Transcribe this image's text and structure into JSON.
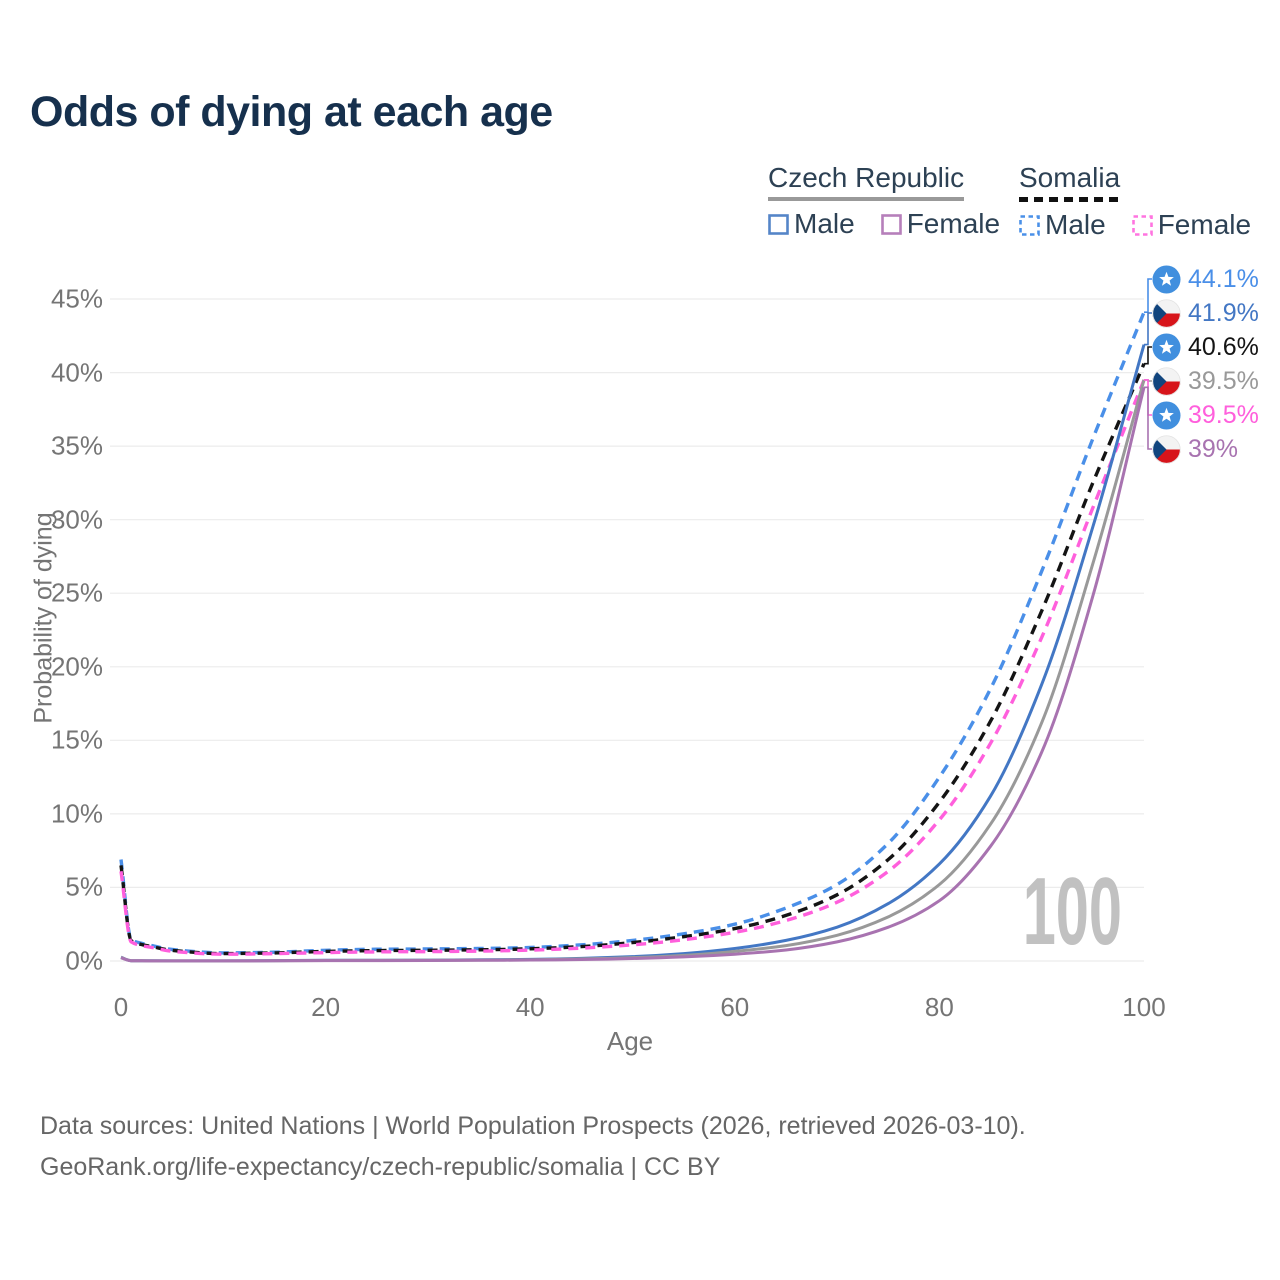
{
  "title": "Odds of dying at each age",
  "legend": {
    "groups": [
      {
        "name": "Czech Republic",
        "line_style": "solid",
        "underline_color": "#999999",
        "items": [
          {
            "label": "Male",
            "color": "#5585c8",
            "dash": "solid"
          },
          {
            "label": "Female",
            "color": "#b67fba",
            "dash": "solid"
          }
        ]
      },
      {
        "name": "Somalia",
        "line_style": "dashed",
        "underline_color": "#111111",
        "items": [
          {
            "label": "Male",
            "color": "#4a90e8",
            "dash": "dashed"
          },
          {
            "label": "Female",
            "color": "#ff74e0",
            "dash": "dashed"
          }
        ]
      }
    ]
  },
  "chart_data": {
    "type": "line",
    "title": "Odds of dying at each age",
    "xlabel": "Age",
    "ylabel": "Probability of dying",
    "xlim": [
      0,
      100
    ],
    "ylim": [
      0,
      45
    ],
    "xticks": [
      0,
      20,
      40,
      60,
      80,
      100
    ],
    "yticks": [
      0,
      5,
      10,
      15,
      20,
      25,
      30,
      35,
      40,
      45
    ],
    "ytick_suffix": "%",
    "grid": "horizontal",
    "legend_position": "top-right",
    "x": [
      0,
      1,
      2,
      3,
      5,
      10,
      15,
      20,
      25,
      30,
      35,
      40,
      45,
      50,
      55,
      60,
      65,
      70,
      75,
      80,
      85,
      90,
      95,
      100
    ],
    "series": [
      {
        "name": "Somalia Male",
        "country": "Somalia",
        "sex": "Male",
        "flag": "somalia",
        "color": "#4a8fe8",
        "dash": "dashed",
        "end_label": "44.1%",
        "values": [
          6.9,
          1.45,
          1.2,
          1.05,
          0.78,
          0.55,
          0.6,
          0.73,
          0.8,
          0.82,
          0.85,
          0.92,
          1.1,
          1.4,
          1.85,
          2.5,
          3.6,
          5.2,
          8.0,
          12.5,
          18.5,
          26.5,
          35.5,
          44.1
        ]
      },
      {
        "name": "Czech Republic Male",
        "country": "Czech Republic",
        "sex": "Male",
        "flag": "czech",
        "color": "#4377c4",
        "dash": "solid",
        "end_label": "41.9%",
        "values": [
          0.26,
          0.02,
          0.015,
          0.012,
          0.01,
          0.01,
          0.025,
          0.05,
          0.055,
          0.06,
          0.08,
          0.11,
          0.18,
          0.3,
          0.5,
          0.85,
          1.4,
          2.3,
          3.9,
          6.6,
          11.2,
          18.8,
          29.5,
          41.9
        ]
      },
      {
        "name": "Somalia Both sexes",
        "country": "Somalia",
        "sex": "Both",
        "flag": "somalia",
        "color": "#141414",
        "dash": "dashed",
        "end_label": "40.6%",
        "values": [
          6.5,
          1.38,
          1.12,
          0.98,
          0.72,
          0.5,
          0.55,
          0.65,
          0.71,
          0.73,
          0.76,
          0.83,
          0.98,
          1.25,
          1.65,
          2.2,
          3.1,
          4.5,
          6.9,
          10.8,
          16.3,
          23.8,
          32.5,
          40.6
        ]
      },
      {
        "name": "Czech Republic Both sexes",
        "country": "Czech Republic",
        "sex": "Both",
        "flag": "czech",
        "color": "#999999",
        "dash": "solid",
        "end_label": "39.5%",
        "values": [
          0.24,
          0.02,
          0.013,
          0.01,
          0.009,
          0.009,
          0.02,
          0.035,
          0.04,
          0.045,
          0.06,
          0.085,
          0.14,
          0.23,
          0.38,
          0.65,
          1.05,
          1.75,
          3.0,
          5.2,
          9.3,
          16.2,
          27.0,
          39.5
        ]
      },
      {
        "name": "Somalia Female",
        "country": "Somalia",
        "sex": "Female",
        "flag": "somalia",
        "color": "#ff5fdc",
        "dash": "dashed",
        "end_label": "39.5%",
        "values": [
          6.1,
          1.3,
          1.05,
          0.92,
          0.66,
          0.46,
          0.5,
          0.57,
          0.62,
          0.64,
          0.67,
          0.74,
          0.88,
          1.1,
          1.45,
          1.95,
          2.75,
          4.0,
          6.1,
          9.6,
          14.8,
          22.0,
          30.8,
          39.5
        ]
      },
      {
        "name": "Czech Republic Female",
        "country": "Czech Republic",
        "sex": "Female",
        "flag": "czech",
        "color": "#a873b0",
        "dash": "solid",
        "end_label": "39%",
        "values": [
          0.22,
          0.018,
          0.012,
          0.009,
          0.008,
          0.008,
          0.015,
          0.025,
          0.03,
          0.035,
          0.045,
          0.065,
          0.1,
          0.17,
          0.28,
          0.46,
          0.75,
          1.3,
          2.3,
          4.1,
          7.8,
          14.2,
          24.8,
          39.0
        ]
      }
    ]
  },
  "watermark": "100",
  "footer": {
    "line1": "Data sources: United Nations | World Population Prospects (2026, retrieved 2026-03-10).",
    "line2": "GeoRank.org/life-expectancy/czech-republic/somalia | CC BY"
  },
  "theme": {
    "grid_color": "#ececec",
    "tick_color": "#757575",
    "title_color": "#16304d",
    "somalia_flag_blue": "#418fde",
    "czech_flag_red": "#d7141a",
    "czech_flag_blue": "#11457e"
  }
}
